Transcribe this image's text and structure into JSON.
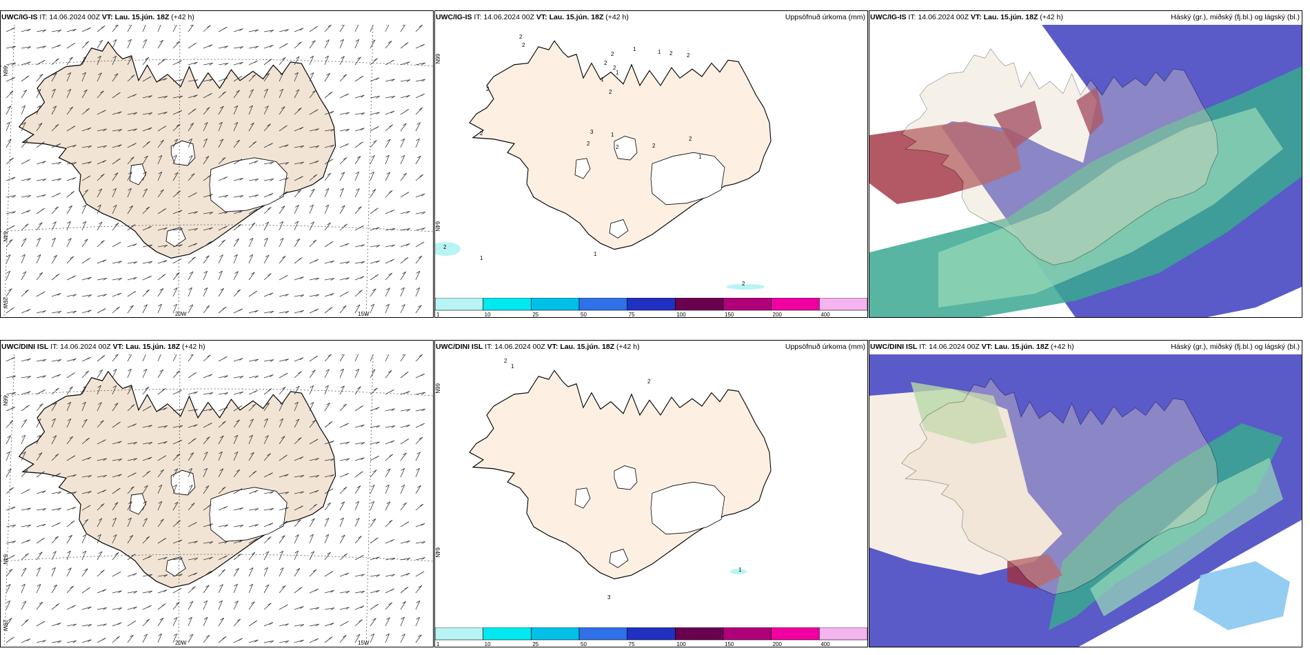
{
  "panels": [
    {
      "model": "UWC/IG-IS",
      "it": "IT: 14.06.2024 00Z",
      "vt": "VT: Lau. 15.jún. 18Z",
      "lead": "(+42 h)",
      "right": "",
      "ax": {
        "a": "66N",
        "b": "64N",
        "c": "25W",
        "d": "20W",
        "e": "15W"
      }
    },
    {
      "model": "UWC/IG-IS",
      "it": "IT: 14.06.2024 00Z",
      "vt": "VT: Lau. 15.jún. 18Z",
      "lead": "(+42 h)",
      "right": "Uppsöfnuð úrkoma (mm)",
      "ax": {
        "a": "66N",
        "b": "64N"
      }
    },
    {
      "model": "UWC/IG-IS",
      "it": "IT: 14.06.2024 00Z",
      "vt": "VT: Lau. 15.jún. 18Z",
      "lead": "(+42 h)",
      "right": "Háský (gr.), miðský (fj.bl.) og lágský (bl.)"
    },
    {
      "model": "UWC/DINI ISL",
      "it": "IT: 14.06.2024 00Z",
      "vt": "VT: Lau. 15.jún. 18Z",
      "lead": "(+42 h)",
      "right": "",
      "ax": {
        "a": "66N",
        "b": "64N",
        "c": "25W",
        "d": "20W",
        "e": "15W"
      }
    },
    {
      "model": "UWC/DINI ISL",
      "it": "IT: 14.06.2024 00Z",
      "vt": "VT: Lau. 15.jún. 18Z",
      "lead": "(+42 h)",
      "right": "Uppsöfnuð úrkoma (mm)",
      "ax": {
        "a": "66N",
        "b": "64N"
      }
    },
    {
      "model": "UWC/DINI ISL",
      "it": "IT: 14.06.2024 00Z",
      "vt": "VT: Lau. 15.jún. 18Z",
      "lead": "(+42 h)",
      "right": "Háský (gr.), miðský (fj.bl.) og lágský (bl.)"
    }
  ],
  "colorbar": {
    "labels": [
      "1",
      "10",
      "25",
      "50",
      "75",
      "100",
      "150",
      "200",
      "400"
    ],
    "colors": [
      "#b8f4f4",
      "#00e8f0",
      "#00c0e8",
      "#3070e8",
      "#2030c0",
      "#6a0050",
      "#b0007a",
      "#f000a0",
      "#f4b4f0"
    ]
  },
  "precip_labels_top": [
    "2",
    "2",
    "2",
    "1",
    "2",
    "2",
    "2",
    "2",
    "1",
    "1",
    "2",
    "1",
    "3",
    "2",
    "1",
    "2",
    "2",
    "2",
    "2",
    "1",
    "1",
    "2",
    "2",
    "1",
    "2"
  ],
  "precip_labels_bottom": [
    "2",
    "1",
    "2",
    "1",
    "3"
  ],
  "cloud_colors": {
    "high": "#3aa890",
    "mid": "#5050c8",
    "low": "#a03040"
  }
}
